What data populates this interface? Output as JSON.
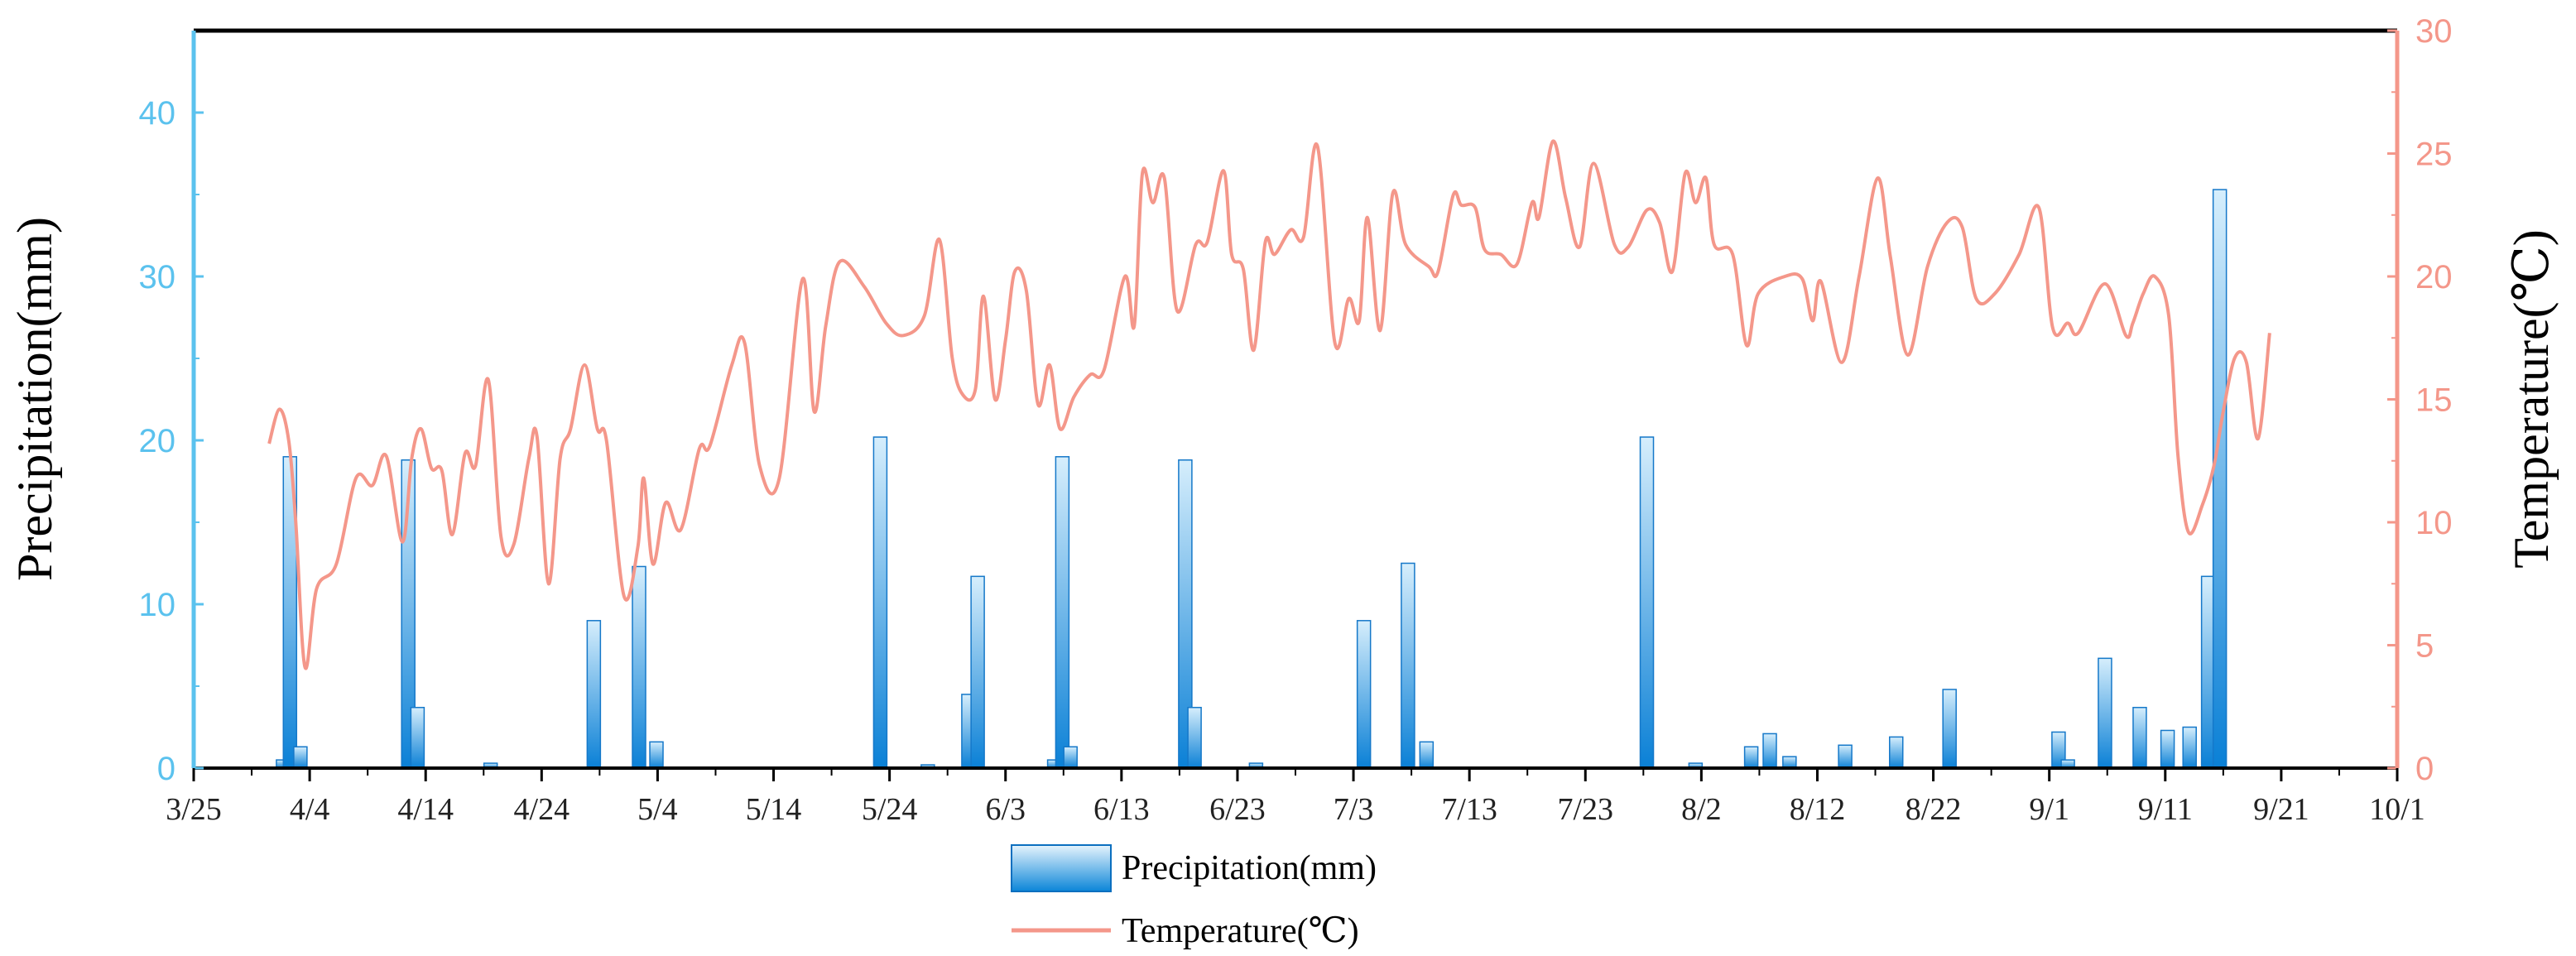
{
  "chart_data": {
    "type": "bar+line",
    "title": "",
    "xlabel": "",
    "x_tick_labels": [
      "3/25",
      "4/4",
      "4/14",
      "4/24",
      "5/4",
      "5/14",
      "5/24",
      "6/3",
      "6/13",
      "6/23",
      "7/3",
      "7/13",
      "7/23",
      "8/2",
      "8/12",
      "8/22",
      "9/1",
      "9/11",
      "9/21",
      "10/1"
    ],
    "x_range_days": [
      0,
      190
    ],
    "day_zero": "3/25",
    "left_axis": {
      "label": "Precipitation(mm)",
      "range": [
        0,
        45
      ],
      "ticks": [
        "0",
        "10",
        "20",
        "30",
        "40"
      ],
      "color": "#5bc2ee"
    },
    "right_axis": {
      "label": "Temperature(℃)",
      "range": [
        0,
        30
      ],
      "ticks": [
        "0",
        "5",
        "10",
        "15",
        "20",
        "25",
        "30"
      ],
      "color": "#f4978a"
    },
    "legend": {
      "position": "bottom-center",
      "precipitation": "Precipitation(mm)",
      "temperature": "Temperature(℃)"
    },
    "series": [
      {
        "name": "Precipitation(mm)",
        "type": "bar",
        "color": "#0b85d8",
        "points": [
          [
            7.7,
            0.5
          ],
          [
            8.3,
            19.0
          ],
          [
            9.2,
            1.3
          ],
          [
            18.5,
            18.8
          ],
          [
            19.3,
            3.7
          ],
          [
            25.6,
            0.3
          ],
          [
            34.5,
            9.0
          ],
          [
            38.4,
            12.3
          ],
          [
            39.9,
            1.6
          ],
          [
            59.2,
            20.2
          ],
          [
            63.3,
            0.2
          ],
          [
            66.8,
            4.5
          ],
          [
            67.6,
            11.7
          ],
          [
            74.2,
            0.5
          ],
          [
            74.9,
            19.0
          ],
          [
            75.6,
            1.3
          ],
          [
            85.5,
            18.8
          ],
          [
            86.3,
            3.7
          ],
          [
            91.6,
            0.3
          ],
          [
            100.9,
            9.0
          ],
          [
            104.7,
            12.5
          ],
          [
            106.3,
            1.6
          ],
          [
            125.3,
            20.2
          ],
          [
            129.5,
            0.3
          ],
          [
            134.3,
            1.3
          ],
          [
            135.9,
            2.1
          ],
          [
            137.6,
            0.7
          ],
          [
            142.4,
            1.4
          ],
          [
            146.8,
            1.9
          ],
          [
            151.4,
            4.8
          ],
          [
            160.8,
            2.2
          ],
          [
            161.6,
            0.5
          ],
          [
            164.8,
            6.7
          ],
          [
            167.8,
            3.7
          ],
          [
            170.2,
            2.3
          ],
          [
            172.1,
            2.5
          ],
          [
            173.7,
            11.7
          ],
          [
            174.7,
            35.3
          ]
        ]
      },
      {
        "name": "Temperature(℃)",
        "type": "line",
        "color": "#f4978a",
        "points": [
          [
            6.5,
            13.2
          ],
          [
            7.4,
            14.6
          ],
          [
            8.2,
            13.3
          ],
          [
            8.8,
            10.0
          ],
          [
            9.6,
            4.1
          ],
          [
            10.6,
            7.3
          ],
          [
            12.3,
            8.3
          ],
          [
            14.0,
            11.8
          ],
          [
            15.4,
            11.5
          ],
          [
            16.6,
            12.7
          ],
          [
            18.0,
            9.2
          ],
          [
            18.8,
            12.6
          ],
          [
            19.6,
            13.8
          ],
          [
            20.5,
            12.2
          ],
          [
            21.4,
            12.1
          ],
          [
            22.3,
            9.5
          ],
          [
            23.4,
            12.8
          ],
          [
            24.3,
            12.3
          ],
          [
            25.4,
            15.8
          ],
          [
            26.5,
            9.4
          ],
          [
            27.6,
            9.1
          ],
          [
            28.9,
            12.6
          ],
          [
            29.6,
            13.5
          ],
          [
            30.6,
            7.5
          ],
          [
            31.6,
            12.6
          ],
          [
            32.5,
            13.8
          ],
          [
            33.7,
            16.4
          ],
          [
            34.8,
            13.8
          ],
          [
            35.6,
            13.3
          ],
          [
            37.1,
            7.0
          ],
          [
            38.3,
            9.0
          ],
          [
            38.8,
            11.8
          ],
          [
            39.6,
            8.3
          ],
          [
            40.7,
            10.8
          ],
          [
            42.0,
            9.7
          ],
          [
            43.6,
            13.0
          ],
          [
            44.5,
            13.1
          ],
          [
            46.4,
            16.4
          ],
          [
            47.5,
            17.3
          ],
          [
            48.8,
            12.3
          ],
          [
            50.5,
            11.8
          ],
          [
            52.5,
            19.9
          ],
          [
            53.5,
            14.5
          ],
          [
            54.5,
            18.0
          ],
          [
            55.7,
            20.6
          ],
          [
            57.8,
            19.6
          ],
          [
            59.7,
            18.1
          ],
          [
            61.2,
            17.6
          ],
          [
            63.0,
            18.4
          ],
          [
            64.3,
            21.5
          ],
          [
            65.4,
            16.7
          ],
          [
            66.3,
            15.2
          ],
          [
            67.4,
            15.4
          ],
          [
            68.1,
            19.2
          ],
          [
            69.1,
            15.0
          ],
          [
            70.0,
            17.4
          ],
          [
            70.8,
            20.2
          ],
          [
            71.8,
            19.4
          ],
          [
            72.8,
            14.8
          ],
          [
            73.8,
            16.4
          ],
          [
            74.7,
            13.8
          ],
          [
            75.9,
            15.1
          ],
          [
            77.3,
            16.0
          ],
          [
            78.5,
            16.2
          ],
          [
            80.3,
            20.0
          ],
          [
            81.1,
            18.0
          ],
          [
            81.8,
            24.2
          ],
          [
            82.7,
            23.0
          ],
          [
            83.7,
            24.0
          ],
          [
            84.8,
            18.6
          ],
          [
            86.4,
            21.3
          ],
          [
            87.4,
            21.4
          ],
          [
            88.8,
            24.3
          ],
          [
            89.5,
            20.9
          ],
          [
            90.5,
            20.3
          ],
          [
            91.4,
            17.0
          ],
          [
            92.4,
            21.4
          ],
          [
            93.2,
            20.9
          ],
          [
            94.6,
            21.9
          ],
          [
            95.7,
            21.6
          ],
          [
            96.9,
            25.3
          ],
          [
            98.4,
            17.3
          ],
          [
            99.6,
            19.1
          ],
          [
            100.5,
            18.2
          ],
          [
            101.2,
            22.4
          ],
          [
            102.3,
            17.8
          ],
          [
            103.4,
            23.4
          ],
          [
            104.5,
            21.3
          ],
          [
            106.5,
            20.4
          ],
          [
            107.3,
            20.2
          ],
          [
            108.6,
            23.3
          ],
          [
            109.3,
            22.9
          ],
          [
            110.5,
            22.8
          ],
          [
            111.3,
            21.1
          ],
          [
            112.7,
            20.9
          ],
          [
            114.1,
            20.5
          ],
          [
            115.4,
            23.0
          ],
          [
            116.0,
            22.4
          ],
          [
            117.2,
            25.5
          ],
          [
            118.3,
            23.2
          ],
          [
            119.5,
            21.2
          ],
          [
            120.7,
            24.6
          ],
          [
            122.5,
            21.3
          ],
          [
            123.7,
            21.2
          ],
          [
            125.3,
            22.7
          ],
          [
            126.4,
            22.2
          ],
          [
            127.5,
            20.2
          ],
          [
            128.6,
            24.2
          ],
          [
            129.5,
            23.0
          ],
          [
            130.4,
            24.0
          ],
          [
            131.1,
            21.3
          ],
          [
            132.7,
            20.9
          ],
          [
            133.9,
            17.2
          ],
          [
            134.9,
            19.3
          ],
          [
            137.2,
            20.0
          ],
          [
            138.7,
            19.9
          ],
          [
            139.6,
            18.2
          ],
          [
            140.3,
            19.8
          ],
          [
            142.1,
            16.5
          ],
          [
            143.6,
            20.0
          ],
          [
            145.2,
            24.0
          ],
          [
            146.3,
            20.8
          ],
          [
            147.8,
            16.8
          ],
          [
            149.5,
            20.4
          ],
          [
            151.2,
            22.2
          ],
          [
            152.5,
            22.0
          ],
          [
            153.7,
            19.1
          ],
          [
            155.3,
            19.3
          ],
          [
            157.4,
            20.9
          ],
          [
            159.1,
            22.8
          ],
          [
            160.3,
            17.9
          ],
          [
            161.6,
            18.1
          ],
          [
            162.5,
            17.7
          ],
          [
            164.8,
            19.7
          ],
          [
            166.6,
            17.6
          ],
          [
            167.2,
            18.1
          ],
          [
            168.1,
            19.3
          ],
          [
            169.1,
            20.0
          ],
          [
            170.3,
            18.4
          ],
          [
            171.1,
            12.7
          ],
          [
            172.0,
            9.6
          ],
          [
            173.2,
            10.7
          ],
          [
            174.2,
            12.3
          ],
          [
            175.0,
            14.5
          ],
          [
            176.0,
            16.7
          ],
          [
            177.0,
            16.5
          ],
          [
            178.0,
            13.4
          ],
          [
            179.0,
            17.7
          ]
        ]
      }
    ]
  }
}
